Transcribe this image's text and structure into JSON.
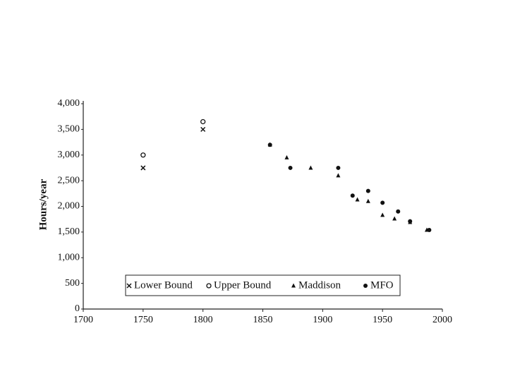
{
  "chart_data": {
    "type": "scatter",
    "y_label": "Hours/year",
    "xlim": [
      1700,
      2000
    ],
    "xticks": [
      1700,
      1750,
      1800,
      1850,
      1900,
      1950,
      2000
    ],
    "ylim": [
      0,
      4000
    ],
    "yticks": [
      0,
      500,
      {
        "value": 1000,
        "label": "1,000"
      },
      {
        "value": 1500,
        "label": "1,500"
      },
      {
        "value": 2000,
        "label": "2,000"
      },
      {
        "value": 2500,
        "label": "2,500"
      },
      {
        "value": 3000,
        "label": "3,000"
      },
      {
        "value": 3500,
        "label": "3,500"
      },
      {
        "value": 4000,
        "label": "4,000"
      }
    ],
    "grid": false,
    "legend": "bottom",
    "series": [
      {
        "name": "Lower Bound",
        "marker": "x",
        "color": "#111",
        "x": [
          1750,
          1800
        ],
        "values": [
          2750,
          3500
        ]
      },
      {
        "name": "Upper Bound",
        "marker": "o",
        "color": "#111",
        "x": [
          1750,
          1800
        ],
        "values": [
          3000,
          3650
        ]
      },
      {
        "name": "Maddison",
        "marker": "triangle",
        "color": "#111",
        "x": [
          1856,
          1870,
          1890,
          1913,
          1929,
          1938,
          1950,
          1960,
          1973,
          1987
        ],
        "values": [
          3200,
          2950,
          2750,
          2600,
          2130,
          2100,
          1830,
          1760,
          1690,
          1540
        ]
      },
      {
        "name": "MFO",
        "marker": "dot",
        "color": "#111",
        "x": [
          1856,
          1873,
          1913,
          1925,
          1938,
          1950,
          1963,
          1973,
          1989
        ],
        "values": [
          3200,
          2750,
          2750,
          2210,
          2300,
          2070,
          1900,
          1710,
          1540
        ]
      }
    ]
  }
}
